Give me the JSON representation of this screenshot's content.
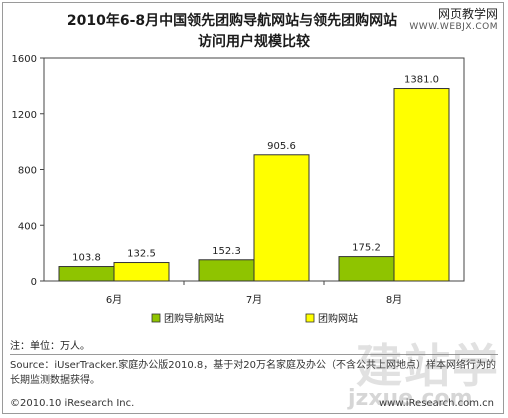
{
  "watermark": {
    "top_cn": "网页教学网",
    "top_url": "WWW.WEBJX.COM",
    "bottom_cn": "建站学",
    "bottom_url": "jzxue.com"
  },
  "note": "注：单位：万人。",
  "source": "Source：iUserTracker.家庭办公版2010.8，基于对20万名家庭及办公（不含公共上网地点）样本网络行为的长期监测数据获得。",
  "footer": {
    "left": "©2010.10 iResearch Inc.",
    "right": "www.iResearch.com.cn"
  },
  "colors": {
    "navigation_sites": "#8fc400",
    "groupbuy_sites": "#ffff00",
    "bar_stroke": "#333333"
  },
  "chart_data": {
    "type": "bar",
    "title": "2010年6-8月中国领先团购导航网站与领先团购网站访问用户规模比较",
    "title_lines": [
      "2010年6-8月中国领先团购导航网站与领先团购网站",
      "访问用户规模比较"
    ],
    "categories": [
      "6月",
      "7月",
      "8月"
    ],
    "series": [
      {
        "name": "团购导航网站",
        "values": [
          103.8,
          152.3,
          175.2
        ],
        "labels": [
          "103.8",
          "152.3",
          "175.2"
        ]
      },
      {
        "name": "团购网站",
        "values": [
          132.5,
          905.6,
          1381.0
        ],
        "labels": [
          "132.5",
          "905.6",
          "1381.0"
        ]
      }
    ],
    "yticks": [
      0,
      400,
      800,
      1200,
      1600
    ],
    "ylim": [
      0,
      1600
    ],
    "xlabel": "",
    "ylabel": "",
    "grid": false,
    "legend": "bottom"
  }
}
